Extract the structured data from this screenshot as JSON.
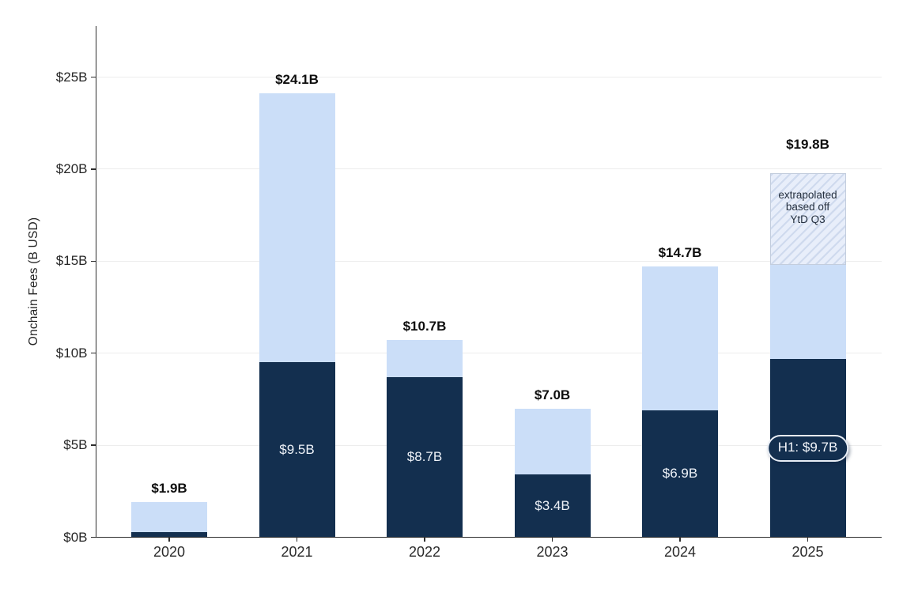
{
  "chart_data": {
    "type": "bar",
    "stacked": true,
    "ylabel": "Onchain Fees (B USD)",
    "ylim": [
      0,
      27.8
    ],
    "grid": true,
    "legend": false,
    "y_ticks": [
      {
        "value": 0,
        "label": "$0B"
      },
      {
        "value": 5,
        "label": "$5B"
      },
      {
        "value": 10,
        "label": "$10B"
      },
      {
        "value": 15,
        "label": "$15B"
      },
      {
        "value": 20,
        "label": "$20B"
      },
      {
        "value": 25,
        "label": "$25B"
      }
    ],
    "categories": [
      "2020",
      "2021",
      "2022",
      "2023",
      "2024",
      "2025"
    ],
    "series": [
      {
        "name": "dark",
        "values": [
          0.3,
          9.5,
          8.7,
          3.4,
          6.9,
          9.7
        ]
      },
      {
        "name": "light",
        "values": [
          1.6,
          14.6,
          2.0,
          3.6,
          7.8,
          5.1
        ]
      },
      {
        "name": "extrapolated",
        "values": [
          0,
          0,
          0,
          0,
          0,
          5.0
        ]
      }
    ],
    "total_labels": [
      "$1.9B",
      "$24.1B",
      "$10.7B",
      "$7.0B",
      "$14.7B",
      "$19.8B"
    ],
    "segment_labels": [
      "",
      "$9.5B",
      "$8.7B",
      "$3.4B",
      "$6.9B",
      ""
    ],
    "pill_label": "H1: $9.7B",
    "extrapolated_note_lines": [
      "extrapolated",
      "based off",
      "YtD Q3"
    ],
    "colors": {
      "dark": "#132f4f",
      "light": "#cbdef8",
      "hatch_bg": "#e8eefa",
      "hatch_stripe": "#cfdaee",
      "gridline": "#ededed",
      "axis": "#2e2e2e",
      "total_label": "#0e0e0e",
      "segment_label": "#eef2f8"
    }
  }
}
